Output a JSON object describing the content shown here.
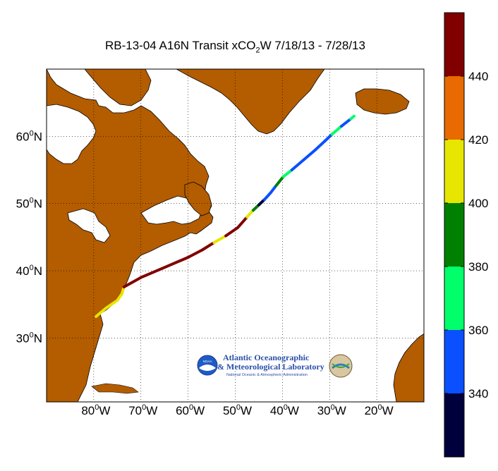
{
  "map": {
    "title_main": "RB-13-04 A16N Transit xCO",
    "title_sub": "2",
    "title_tail": "W 7/18/13 - 7/28/13",
    "lon_ticks": [
      {
        "deg": "80",
        "unit": "W"
      },
      {
        "deg": "70",
        "unit": "W"
      },
      {
        "deg": "60",
        "unit": "W"
      },
      {
        "deg": "50",
        "unit": "W"
      },
      {
        "deg": "40",
        "unit": "W"
      },
      {
        "deg": "30",
        "unit": "W"
      },
      {
        "deg": "20",
        "unit": "W"
      }
    ],
    "lat_ticks": [
      {
        "deg": "60",
        "unit": "N"
      },
      {
        "deg": "50",
        "unit": "N"
      },
      {
        "deg": "40",
        "unit": "N"
      },
      {
        "deg": "30",
        "unit": "N"
      }
    ],
    "extent": {
      "lon_min": -90,
      "lon_max": -10,
      "lat_min": 20.5,
      "lat_max": 70
    },
    "land_color": "#b35c00",
    "water_color": "#ffffff",
    "grid": "dotted"
  },
  "track": {
    "points": [
      {
        "lon": -79.5,
        "lat": 33.2,
        "v": 408
      },
      {
        "lon": -77.5,
        "lat": 34.4,
        "v": 410
      },
      {
        "lon": -75.0,
        "lat": 35.6,
        "v": 412
      },
      {
        "lon": -74.0,
        "lat": 36.6,
        "v": 415
      },
      {
        "lon": -73.6,
        "lat": 37.6,
        "v": 450
      },
      {
        "lon": -70.0,
        "lat": 39.0,
        "v": 450
      },
      {
        "lon": -65.0,
        "lat": 40.5,
        "v": 450
      },
      {
        "lon": -60.0,
        "lat": 42.0,
        "v": 448
      },
      {
        "lon": -57.0,
        "lat": 43.1,
        "v": 440
      },
      {
        "lon": -54.5,
        "lat": 44.2,
        "v": 412
      },
      {
        "lon": -52.0,
        "lat": 45.2,
        "v": 450
      },
      {
        "lon": -49.5,
        "lat": 46.4,
        "v": 450
      },
      {
        "lon": -47.5,
        "lat": 48.0,
        "v": 410
      },
      {
        "lon": -46.2,
        "lat": 49.0,
        "v": 395
      },
      {
        "lon": -45.0,
        "lat": 49.8,
        "v": 330
      },
      {
        "lon": -43.8,
        "lat": 50.6,
        "v": 350
      },
      {
        "lon": -42.5,
        "lat": 51.6,
        "v": 350
      },
      {
        "lon": -41.3,
        "lat": 52.7,
        "v": 385
      },
      {
        "lon": -39.8,
        "lat": 54.0,
        "v": 370
      },
      {
        "lon": -38.0,
        "lat": 55.0,
        "v": 350
      },
      {
        "lon": -35.5,
        "lat": 56.5,
        "v": 350
      },
      {
        "lon": -33.0,
        "lat": 58.0,
        "v": 350
      },
      {
        "lon": -31.0,
        "lat": 59.3,
        "v": 355
      },
      {
        "lon": -29.5,
        "lat": 60.3,
        "v": 365
      },
      {
        "lon": -27.5,
        "lat": 61.5,
        "v": 350
      },
      {
        "lon": -25.5,
        "lat": 62.6,
        "v": 365
      },
      {
        "lon": -24.8,
        "lat": 63.0,
        "v": 350
      }
    ]
  },
  "colorbar": {
    "min": 320,
    "max": 460,
    "ticks": [
      "340",
      "360",
      "380",
      "400",
      "420",
      "440"
    ],
    "tick_values": [
      340,
      360,
      380,
      400,
      420,
      440
    ],
    "bins": [
      {
        "from": 320,
        "to": 340,
        "color": "#00003c"
      },
      {
        "from": 340,
        "to": 360,
        "color": "#0a50ff"
      },
      {
        "from": 360,
        "to": 380,
        "color": "#00ff6a"
      },
      {
        "from": 380,
        "to": 400,
        "color": "#008000"
      },
      {
        "from": 400,
        "to": 420,
        "color": "#e6e600"
      },
      {
        "from": 420,
        "to": 440,
        "color": "#e86a00"
      },
      {
        "from": 440,
        "to": 460,
        "color": "#800000"
      }
    ]
  },
  "logo": {
    "line1": "Atlantic Oceanographic",
    "line2": "& Meteorological Laboratory",
    "line3": "National Oceanic & Atmospheric Administration",
    "emblem": "NOAA"
  }
}
